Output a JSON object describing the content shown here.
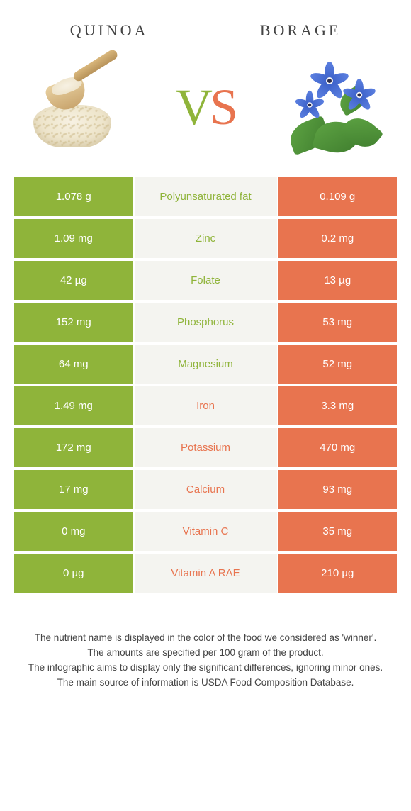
{
  "header": {
    "left_title": "QUINOA",
    "right_title": "BORAGE"
  },
  "vs": {
    "v": "V",
    "s": "S"
  },
  "colors": {
    "left": "#8fb43a",
    "right": "#e8744f",
    "mid_bg": "#f4f4f0"
  },
  "table": {
    "rows": [
      {
        "nutrient": "Polyunsaturated fat",
        "left": "1.078 g",
        "right": "0.109 g",
        "winner": "left"
      },
      {
        "nutrient": "Zinc",
        "left": "1.09 mg",
        "right": "0.2 mg",
        "winner": "left"
      },
      {
        "nutrient": "Folate",
        "left": "42 µg",
        "right": "13 µg",
        "winner": "left"
      },
      {
        "nutrient": "Phosphorus",
        "left": "152 mg",
        "right": "53 mg",
        "winner": "left"
      },
      {
        "nutrient": "Magnesium",
        "left": "64 mg",
        "right": "52 mg",
        "winner": "left"
      },
      {
        "nutrient": "Iron",
        "left": "1.49 mg",
        "right": "3.3 mg",
        "winner": "right"
      },
      {
        "nutrient": "Potassium",
        "left": "172 mg",
        "right": "470 mg",
        "winner": "right"
      },
      {
        "nutrient": "Calcium",
        "left": "17 mg",
        "right": "93 mg",
        "winner": "right"
      },
      {
        "nutrient": "Vitamin C",
        "left": "0 mg",
        "right": "35 mg",
        "winner": "right"
      },
      {
        "nutrient": "Vitamin A RAE",
        "left": "0 µg",
        "right": "210 µg",
        "winner": "right"
      }
    ]
  },
  "footer": {
    "line1": "The nutrient name is displayed in the color of the food we considered as 'winner'.",
    "line2": "The amounts are specified per 100 gram of the product.",
    "line3": "The infographic aims to display only the significant differences, ignoring minor ones.",
    "line4": "The main source of information is USDA Food Composition Database."
  }
}
